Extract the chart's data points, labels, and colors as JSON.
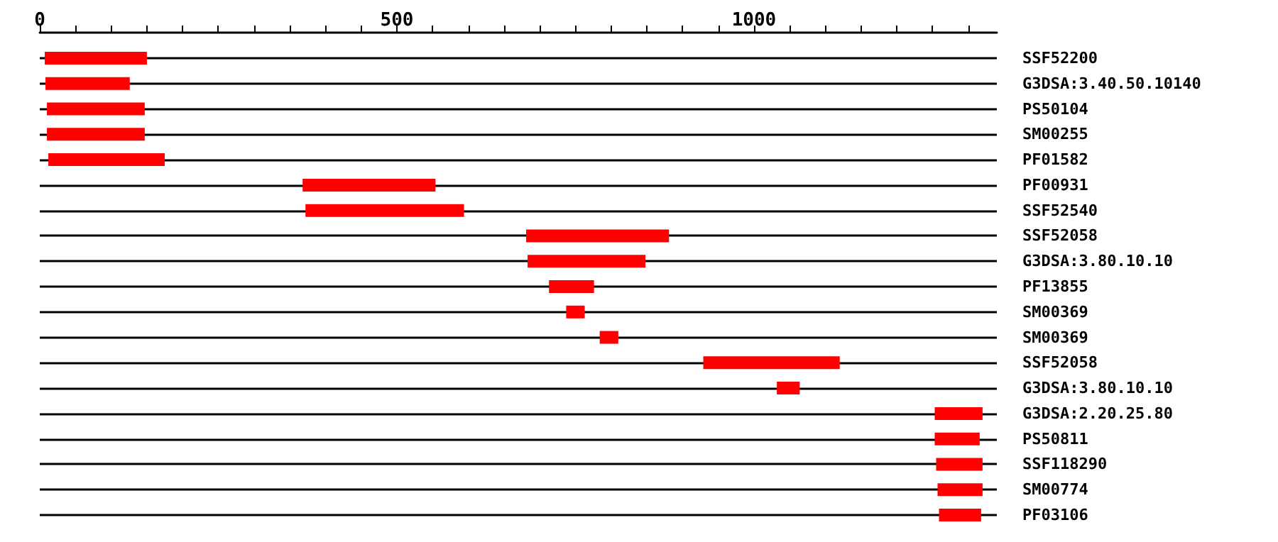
{
  "chart_data": {
    "type": "bar",
    "orientation": "horizontal",
    "grid": "y",
    "categories": [
      "SSF52200",
      "G3DSA:3.40.50.10140",
      "PS50104",
      "SM00255",
      "PF01582",
      "PF00931",
      "SSF52540",
      "SSF52058",
      "G3DSA:3.80.10.10",
      "PF13855",
      "SM00369",
      "SM00369",
      "SSF52058",
      "G3DSA:3.80.10.10",
      "G3DSA:2.20.25.80",
      "PS50811",
      "SSF118290",
      "SM00774",
      "PF03106"
    ],
    "base": [
      7,
      8,
      10,
      10,
      12,
      368,
      372,
      681,
      683,
      713,
      737,
      784,
      929,
      1032,
      1253,
      1253,
      1255,
      1257,
      1259
    ],
    "values": [
      143,
      118,
      137,
      137,
      163,
      186,
      222,
      200,
      165,
      63,
      26,
      26,
      191,
      32,
      67,
      63,
      65,
      63,
      59
    ],
    "color": "#ff0000",
    "xlim": [
      0,
      1340
    ],
    "xticks": [
      0,
      {
        "value": 50,
        "label": null
      },
      {
        "value": 100,
        "label": null
      },
      {
        "value": 150,
        "label": null
      },
      {
        "value": 200,
        "label": null
      },
      {
        "value": 250,
        "label": null
      },
      {
        "value": 300,
        "label": null
      },
      {
        "value": 350,
        "label": null
      },
      {
        "value": 400,
        "label": null
      },
      {
        "value": 450,
        "label": null
      },
      500,
      {
        "value": 550,
        "label": null
      },
      {
        "value": 600,
        "label": null
      },
      {
        "value": 650,
        "label": null
      },
      {
        "value": 700,
        "label": null
      },
      {
        "value": 750,
        "label": null
      },
      {
        "value": 800,
        "label": null
      },
      {
        "value": 850,
        "label": null
      },
      {
        "value": 900,
        "label": null
      },
      {
        "value": 950,
        "label": null
      },
      1000,
      {
        "value": 1050,
        "label": null
      },
      {
        "value": 1100,
        "label": null
      },
      {
        "value": 1150,
        "label": null
      },
      {
        "value": 1200,
        "label": null
      },
      {
        "value": 1250,
        "label": null
      },
      {
        "value": 1300,
        "label": null
      }
    ]
  }
}
